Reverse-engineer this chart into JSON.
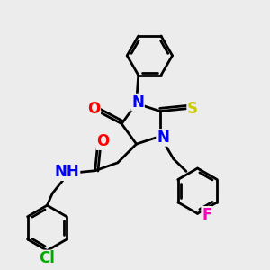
{
  "background_color": "#ececec",
  "atom_colors": {
    "N": "#0000ff",
    "O": "#ff0000",
    "S": "#cccc00",
    "F": "#ff00bb",
    "Cl": "#00aa00",
    "H": "#555555",
    "C": "#000000"
  },
  "bond_color": "#000000",
  "bond_width": 2.0,
  "font_size_atom": 12,
  "font_size_small": 10
}
